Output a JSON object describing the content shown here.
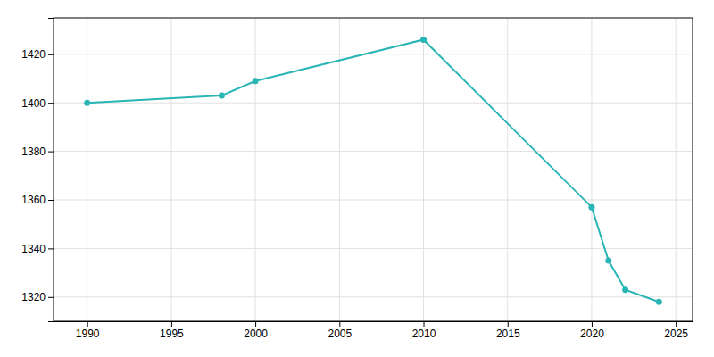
{
  "chart_data": {
    "type": "line",
    "x": [
      1990,
      1998,
      2000,
      2010,
      2020,
      2021,
      2022,
      2024
    ],
    "values": [
      1400,
      1403,
      1409,
      1426,
      1357,
      1335,
      1323,
      1318
    ],
    "color": "#2ab5b5",
    "marker": "circle",
    "xlim": [
      1988,
      2026
    ],
    "ylim": [
      1310,
      1435
    ],
    "xticks": [
      1990,
      1995,
      2000,
      2005,
      2010,
      2015,
      2020,
      2025
    ],
    "yticks": [
      1320,
      1340,
      1360,
      1380,
      1400,
      1420
    ],
    "grid": true
  }
}
